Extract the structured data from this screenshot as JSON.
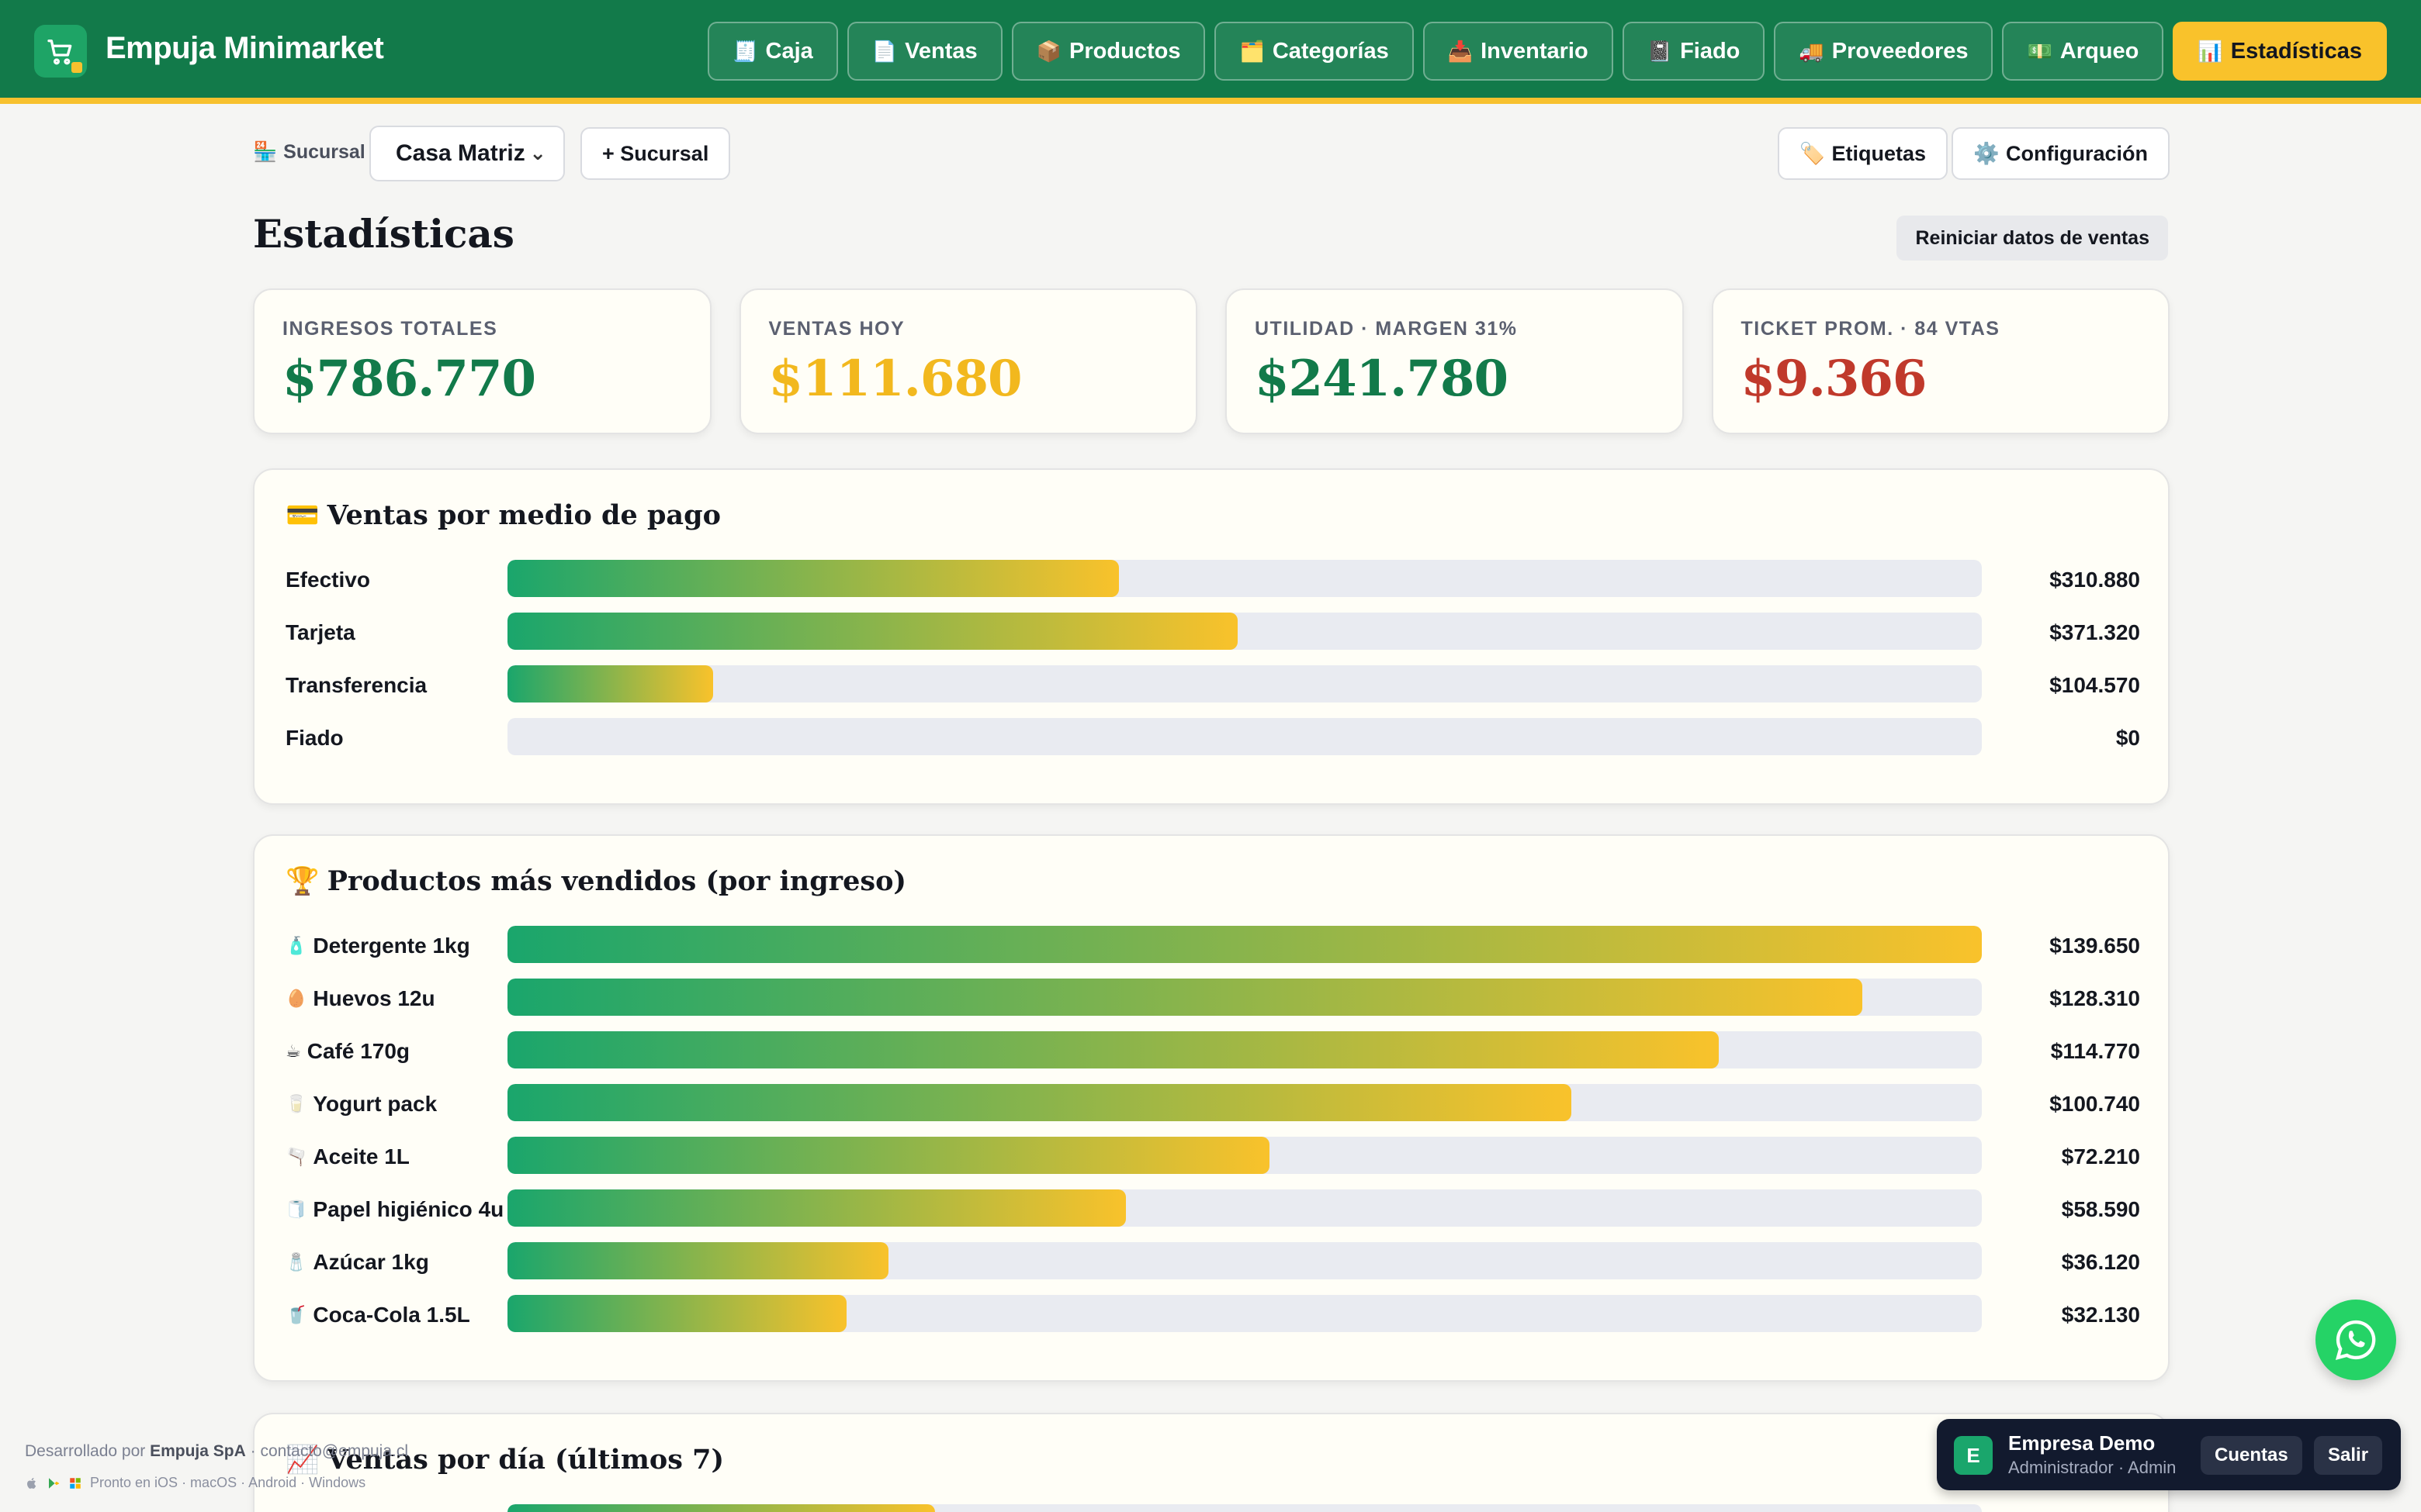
{
  "app": {
    "brand": "Empuja Minimarket"
  },
  "nav": [
    {
      "icon": "🧾",
      "label": "Caja",
      "active": false
    },
    {
      "icon": "📄",
      "label": "Ventas",
      "active": false
    },
    {
      "icon": "📦",
      "label": "Productos",
      "active": false
    },
    {
      "icon": "🗂️",
      "label": "Categorías",
      "active": false
    },
    {
      "icon": "📥",
      "label": "Inventario",
      "active": false
    },
    {
      "icon": "📓",
      "label": "Fiado",
      "active": false
    },
    {
      "icon": "🚚",
      "label": "Proveedores",
      "active": false
    },
    {
      "icon": "💵",
      "label": "Arqueo",
      "active": false
    },
    {
      "icon": "📊",
      "label": "Estadísticas",
      "active": true
    }
  ],
  "toolbar": {
    "sucursal_label": "Sucursal",
    "sucursal_value": "Casa Matriz",
    "add_sucursal": "+ Sucursal",
    "etiquetas": "Etiquetas",
    "configuracion": "Configuración"
  },
  "page": {
    "title": "Estadísticas",
    "reset_label": "Reiniciar datos de ventas"
  },
  "kpis": [
    {
      "label": "INGRESOS TOTALES",
      "value": "$786.770",
      "color": "#127a4a"
    },
    {
      "label": "VENTAS HOY",
      "value": "$111.680",
      "color": "#f2b81e"
    },
    {
      "label": "UTILIDAD · MARGEN 31%",
      "value": "$241.780",
      "color": "#127a4a"
    },
    {
      "label": "TICKET PROM. · 84 VTAS",
      "value": "$9.366",
      "color": "#c0392b"
    }
  ],
  "payments": {
    "title": "Ventas por medio de pago",
    "icon": "💳",
    "max": 750000,
    "rows": [
      {
        "label": "Efectivo",
        "value": "$310.880",
        "amount": 310880
      },
      {
        "label": "Tarjeta",
        "value": "$371.320",
        "amount": 371320
      },
      {
        "label": "Transferencia",
        "value": "$104.570",
        "amount": 104570
      },
      {
        "label": "Fiado",
        "value": "$0",
        "amount": 0
      }
    ]
  },
  "top_products": {
    "title": "Productos más vendidos (por ingreso)",
    "icon": "🏆",
    "rows": [
      {
        "icon": "🧴",
        "label": "Detergente 1kg",
        "value": "$139.650",
        "amount": 139650
      },
      {
        "icon": "🥚",
        "label": "Huevos 12u",
        "value": "$128.310",
        "amount": 128310
      },
      {
        "icon": "☕",
        "label": "Café 170g",
        "value": "$114.770",
        "amount": 114770
      },
      {
        "icon": "🥛",
        "label": "Yogurt pack",
        "value": "$100.740",
        "amount": 100740
      },
      {
        "icon": "🫗",
        "label": "Aceite 1L",
        "value": "$72.210",
        "amount": 72210
      },
      {
        "icon": "🧻",
        "label": "Papel higiénico 4u",
        "value": "$58.590",
        "amount": 58590
      },
      {
        "icon": "🧂",
        "label": "Azúcar 1kg",
        "value": "$36.120",
        "amount": 36120
      },
      {
        "icon": "🥤",
        "label": "Coca-Cola 1.5L",
        "value": "$32.130",
        "amount": 32130
      }
    ]
  },
  "daily": {
    "title": "Ventas por día (últimos 7)",
    "icon": "📈",
    "first_bar_fraction": 0.29
  },
  "account": {
    "initial": "E",
    "name": "Empresa Demo",
    "role": "Administrador · Admin",
    "cuentas": "Cuentas",
    "salir": "Salir"
  },
  "footer": {
    "prefix": "Desarrollado por",
    "company": "Empuja SpA",
    "contact": "· contacto@empuja.cl",
    "platforms": "Pronto en iOS · macOS · Android · Windows"
  }
}
